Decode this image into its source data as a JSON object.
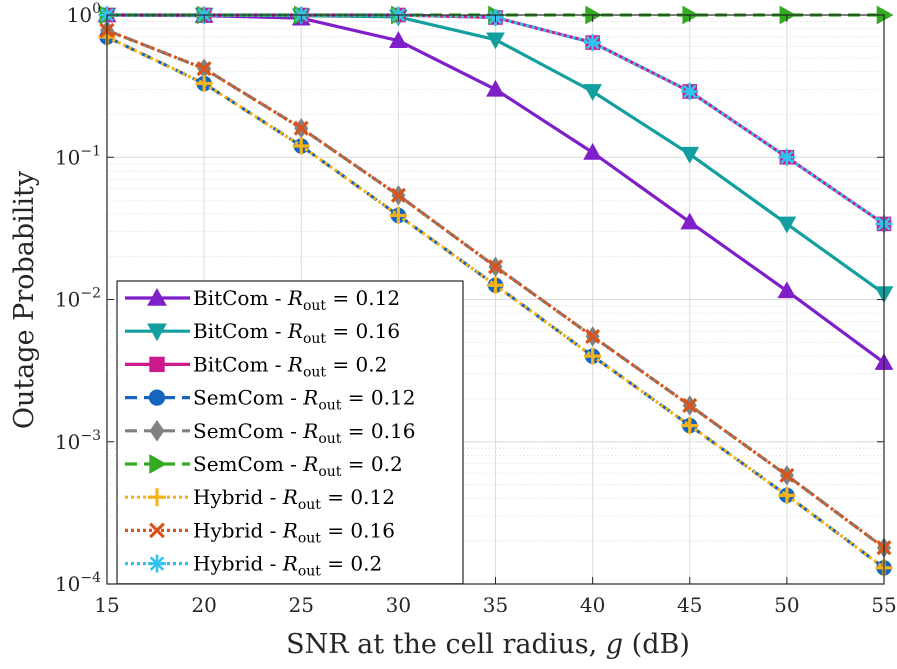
{
  "chart_data": {
    "type": "line",
    "title": "",
    "xlabel": "SNR at the cell radius, g (dB)",
    "xlabel_parts": {
      "prefix": "SNR at the cell radius, ",
      "var": "g",
      "suffix": " (dB)"
    },
    "ylabel": "Outage Probability",
    "x": [
      15,
      20,
      25,
      30,
      35,
      40,
      45,
      50,
      55
    ],
    "xlim": [
      15,
      55
    ],
    "ylim": [
      0.0001,
      1
    ],
    "yscale": "log",
    "grid": true,
    "minor_grid": true,
    "xtick_labels": [
      "15",
      "20",
      "25",
      "30",
      "35",
      "40",
      "45",
      "50",
      "55"
    ],
    "ytick_labels": [
      {
        "base": "10",
        "exp": "−4"
      },
      {
        "base": "10",
        "exp": "−3"
      },
      {
        "base": "10",
        "exp": "−2"
      },
      {
        "base": "10",
        "exp": "−1"
      },
      {
        "base": "10",
        "exp": "0"
      }
    ],
    "legend_position": "bottom-left",
    "series": [
      {
        "name": "BitCom - R_out = 0.12",
        "scheme": "BitCom",
        "rout": "0.12",
        "color": "#7E1FC9",
        "marker": "triangle-up",
        "linestyle": "solid",
        "values": [
          1.0,
          0.99,
          0.95,
          0.66,
          0.3,
          0.108,
          0.035,
          0.0115,
          0.0036
        ]
      },
      {
        "name": "BitCom - R_out = 0.16",
        "scheme": "BitCom",
        "rout": "0.16",
        "color": "#139F9F",
        "marker": "triangle-down",
        "linestyle": "solid",
        "values": [
          1.0,
          1.0,
          0.99,
          0.97,
          0.67,
          0.29,
          0.105,
          0.034,
          0.011
        ]
      },
      {
        "name": "BitCom - R_out = 0.2",
        "scheme": "BitCom",
        "rout": "0.2",
        "color": "#CC1A8C",
        "marker": "square",
        "linestyle": "solid",
        "values": [
          1.0,
          1.0,
          1.0,
          1.0,
          0.96,
          0.64,
          0.29,
          0.1,
          0.034
        ]
      },
      {
        "name": "SemCom - R_out = 0.12",
        "scheme": "SemCom",
        "rout": "0.12",
        "color": "#1565C0",
        "marker": "circle",
        "linestyle": "dashed",
        "values": [
          0.7,
          0.33,
          0.12,
          0.039,
          0.0126,
          0.004,
          0.0013,
          0.00042,
          0.00013
        ]
      },
      {
        "name": "SemCom - R_out = 0.16",
        "scheme": "SemCom",
        "rout": "0.16",
        "color": "#808080",
        "marker": "diamond",
        "linestyle": "dashed",
        "values": [
          0.78,
          0.42,
          0.16,
          0.054,
          0.017,
          0.0055,
          0.0018,
          0.00058,
          0.00018
        ]
      },
      {
        "name": "SemCom - R_out = 0.2",
        "scheme": "SemCom",
        "rout": "0.2",
        "color": "#33AA22",
        "marker": "triangle-right",
        "linestyle": "dashed",
        "values": [
          1.0,
          1.0,
          1.0,
          1.0,
          1.0,
          1.0,
          1.0,
          1.0,
          1.0
        ]
      },
      {
        "name": "Hybrid - R_out = 0.12",
        "scheme": "Hybrid",
        "rout": "0.12",
        "color": "#F5B31B",
        "marker": "plus",
        "linestyle": "dotted",
        "values": [
          0.7,
          0.33,
          0.12,
          0.039,
          0.0126,
          0.004,
          0.0013,
          0.00042,
          0.00013
        ]
      },
      {
        "name": "Hybrid - R_out = 0.16",
        "scheme": "Hybrid",
        "rout": "0.16",
        "color": "#D9541A",
        "marker": "x",
        "linestyle": "dotted",
        "values": [
          0.78,
          0.42,
          0.16,
          0.054,
          0.017,
          0.0055,
          0.0018,
          0.00058,
          0.00018
        ]
      },
      {
        "name": "Hybrid - R_out = 0.2",
        "scheme": "Hybrid",
        "rout": "0.2",
        "color": "#33C2EE",
        "marker": "asterisk",
        "linestyle": "dotted",
        "values": [
          1.0,
          1.0,
          1.0,
          1.0,
          0.96,
          0.64,
          0.29,
          0.1,
          0.034
        ]
      }
    ]
  }
}
